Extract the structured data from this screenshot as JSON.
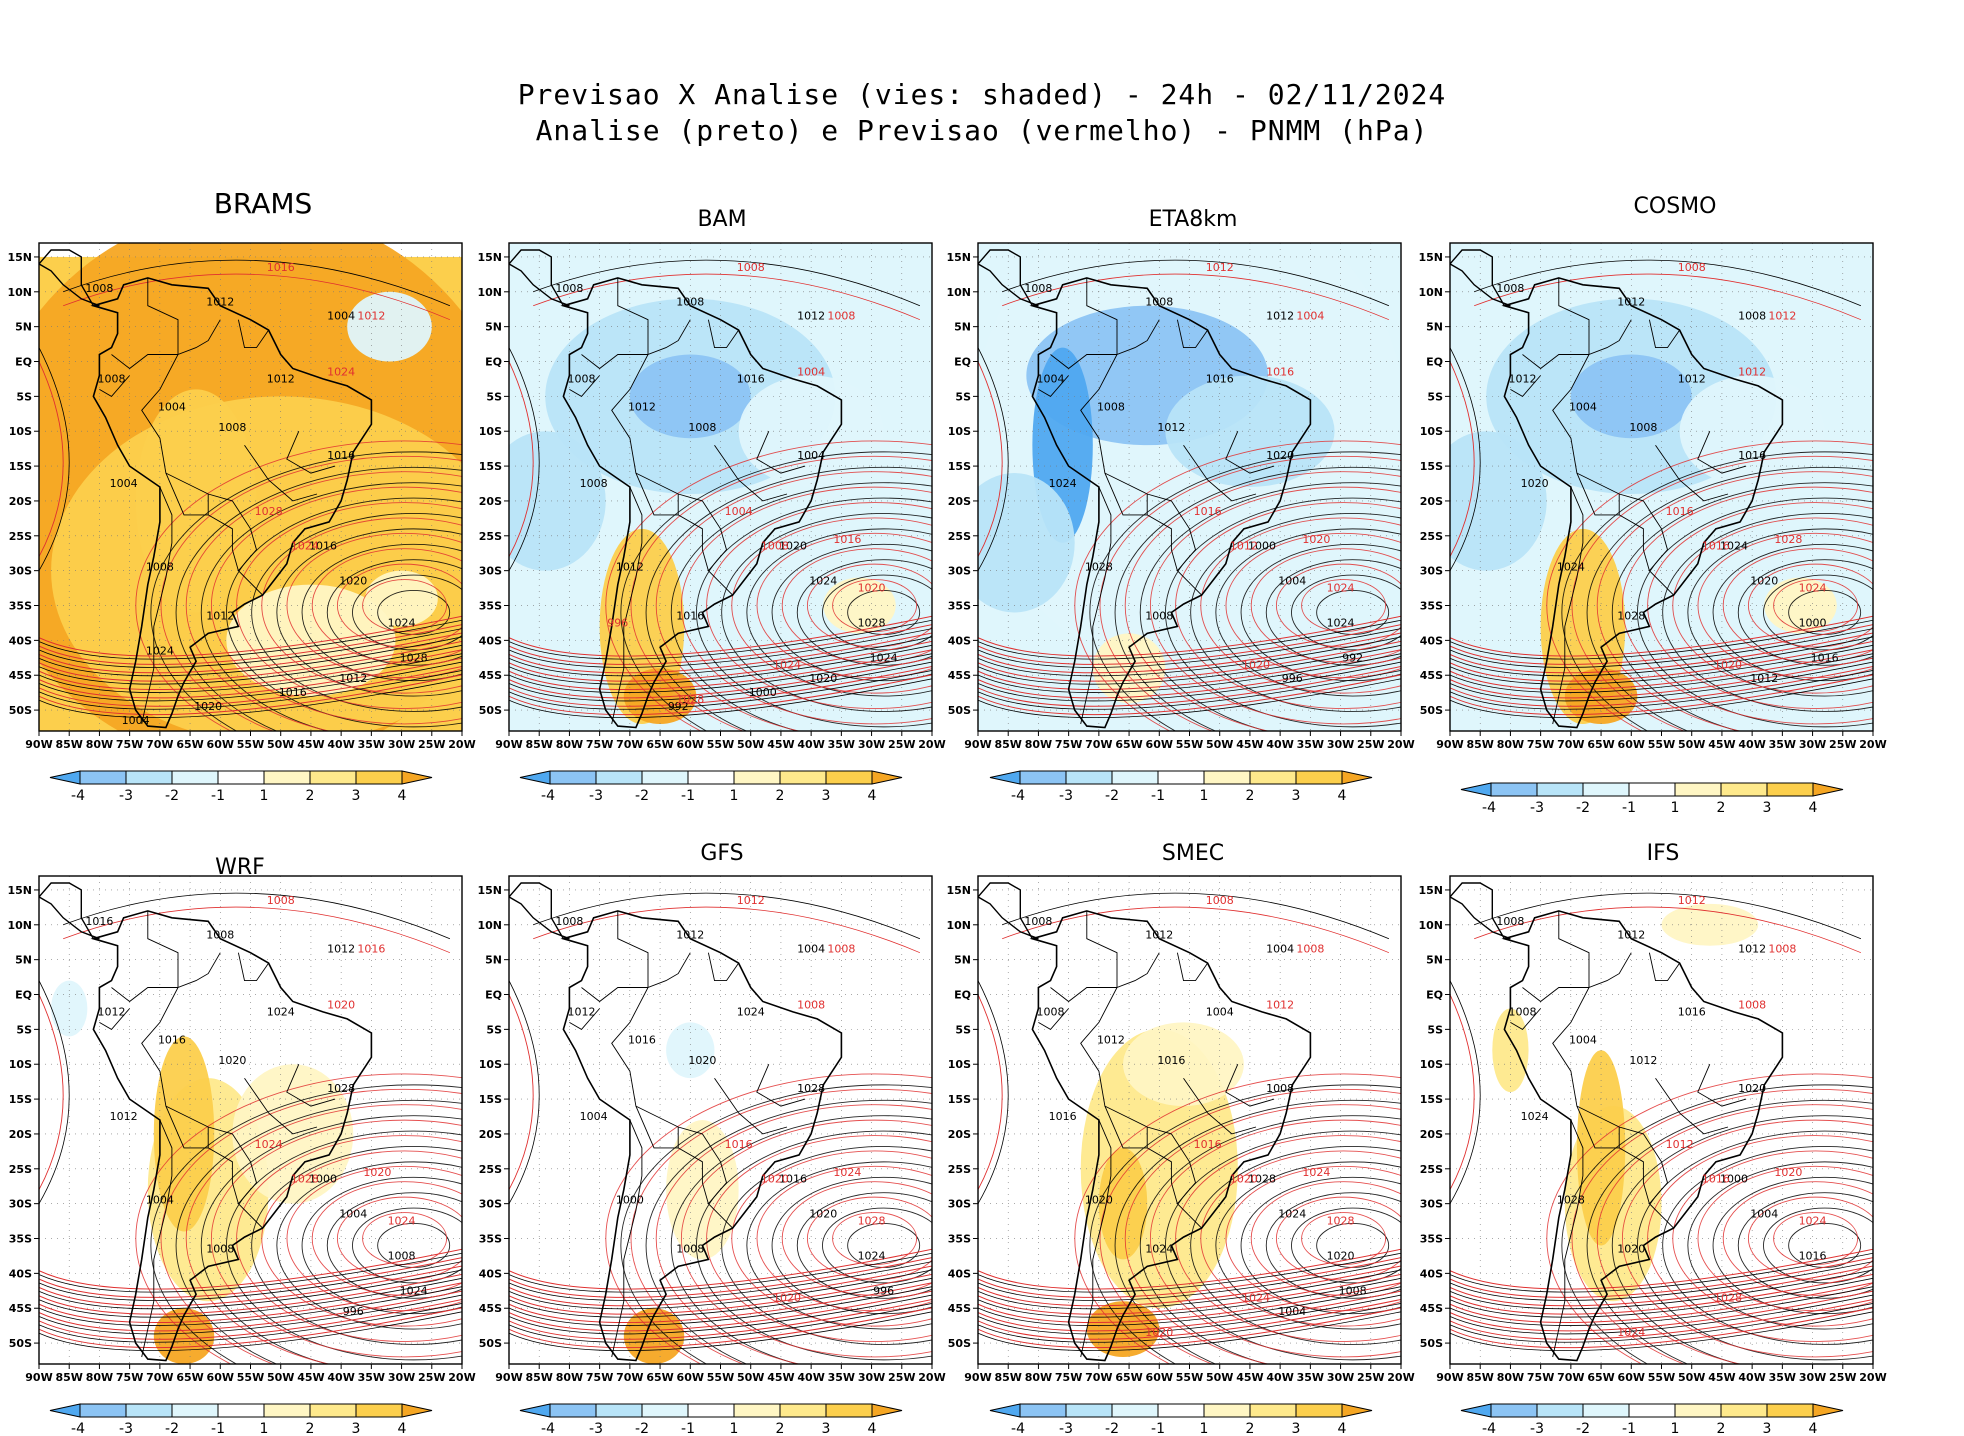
{
  "title": {
    "line1": "Previsao X Analise (vies: shaded) - 24h - 02/11/2024",
    "line2": "Analise (preto) e Previsao (vermelho) - PNMM (hPa)"
  },
  "colors": {
    "analysis_contour": "#000000",
    "forecast_contour": "#e03030",
    "bias_neg4": "#4fa8f0",
    "bias_neg3": "#8cc4f4",
    "bias_neg2": "#b8e4f8",
    "bias_neg1": "#dff6fc",
    "bias_zero": "#ffffff",
    "bias_pos1": "#fff6c4",
    "bias_pos2": "#fee98c",
    "bias_pos3": "#fccf4c",
    "bias_pos4": "#f5a623"
  },
  "chart_data": {
    "type": "heatmap",
    "variable": "PNMM (hPa)",
    "lead_time": "24h",
    "date": "02/11/2024",
    "x_ticks": [
      "90W",
      "85W",
      "80W",
      "75W",
      "70W",
      "65W",
      "60W",
      "55W",
      "50W",
      "45W",
      "40W",
      "35W",
      "30W",
      "25W",
      "20W"
    ],
    "y_ticks": [
      "15N",
      "10N",
      "5N",
      "EQ",
      "5S",
      "10S",
      "15S",
      "20S",
      "25S",
      "30S",
      "35S",
      "40S",
      "45S",
      "50S"
    ],
    "xlim": [
      -90,
      -20
    ],
    "ylim": [
      -53,
      17
    ],
    "colorbar": {
      "ticks": [
        "-4",
        "-3",
        "-2",
        "-1",
        "1",
        "2",
        "3",
        "4"
      ],
      "boundaries": [
        -4,
        -3,
        -2,
        -1,
        1,
        2,
        3,
        4
      ]
    },
    "panels": [
      {
        "name": "BRAMS",
        "dominant_bias": "positive_strong",
        "analysis_labels": [
          "1008",
          "1012",
          "1004",
          "1008",
          "1004",
          "1008",
          "1012",
          "1016",
          "1004",
          "1008",
          "1012",
          "1016",
          "1020",
          "1024",
          "1028",
          "1012",
          "1016",
          "1020",
          "1024",
          "1004"
        ],
        "forecast_labels": [
          "1016",
          "1012",
          "1024",
          "1028",
          "1024"
        ]
      },
      {
        "name": "BAM",
        "dominant_bias": "negative_north_positive_south",
        "analysis_labels": [
          "1008",
          "1008",
          "1012",
          "1008",
          "1012",
          "1008",
          "1016",
          "1004",
          "1008",
          "1012",
          "1016",
          "1020",
          "1024",
          "1028",
          "1024",
          "1020",
          "1000",
          "992"
        ],
        "forecast_labels": [
          "1008",
          "1008",
          "1004",
          "1004",
          "1008",
          "1016",
          "1020",
          "1024",
          "1028",
          "996"
        ]
      },
      {
        "name": "ETA8km",
        "dominant_bias": "negative",
        "analysis_labels": [
          "1008",
          "1008",
          "1012",
          "1004",
          "1008",
          "1012",
          "1016",
          "1020",
          "1024",
          "1028",
          "1008",
          "1000",
          "1004",
          "1024",
          "992",
          "996"
        ],
        "forecast_labels": [
          "1012",
          "1004",
          "1016",
          "1016",
          "1012",
          "1020",
          "1024",
          "1020"
        ]
      },
      {
        "name": "COSMO",
        "dominant_bias": "negative_north_positive_south",
        "analysis_labels": [
          "1008",
          "1012",
          "1008",
          "1012",
          "1004",
          "1008",
          "1012",
          "1016",
          "1020",
          "1024",
          "1028",
          "1024",
          "1020",
          "1000",
          "1016",
          "1012"
        ],
        "forecast_labels": [
          "1008",
          "1012",
          "1012",
          "1016",
          "1016",
          "1028",
          "1024",
          "1020"
        ]
      },
      {
        "name": "WRF",
        "dominant_bias": "mixed_positive",
        "analysis_labels": [
          "1016",
          "1008",
          "1012",
          "1012",
          "1016",
          "1020",
          "1024",
          "1028",
          "1012",
          "1004",
          "1008",
          "1000",
          "1004",
          "1008",
          "1024",
          "996"
        ],
        "forecast_labels": [
          "1008",
          "1016",
          "1020",
          "1024",
          "1028",
          "1020",
          "1024"
        ]
      },
      {
        "name": "GFS",
        "dominant_bias": "near_zero",
        "analysis_labels": [
          "1008",
          "1012",
          "1004",
          "1012",
          "1016",
          "1020",
          "1024",
          "1028",
          "1004",
          "1000",
          "1008",
          "1016",
          "1020",
          "1024",
          "996"
        ],
        "forecast_labels": [
          "1012",
          "1008",
          "1008",
          "1016",
          "1020",
          "1024",
          "1028",
          "1020"
        ]
      },
      {
        "name": "SMEC",
        "dominant_bias": "positive_central",
        "analysis_labels": [
          "1008",
          "1012",
          "1004",
          "1008",
          "1012",
          "1016",
          "1004",
          "1008",
          "1016",
          "1020",
          "1024",
          "1028",
          "1024",
          "1020",
          "1008",
          "1004"
        ],
        "forecast_labels": [
          "1008",
          "1008",
          "1012",
          "1016",
          "1020",
          "1024",
          "1028",
          "1024",
          "1020"
        ]
      },
      {
        "name": "IFS",
        "dominant_bias": "positive_southcentral",
        "analysis_labels": [
          "1008",
          "1012",
          "1012",
          "1008",
          "1004",
          "1012",
          "1016",
          "1020",
          "1024",
          "1028",
          "1020",
          "1000",
          "1004",
          "1016"
        ],
        "forecast_labels": [
          "1012",
          "1008",
          "1008",
          "1012",
          "1016",
          "1020",
          "1024",
          "1028",
          "1024"
        ]
      }
    ]
  }
}
